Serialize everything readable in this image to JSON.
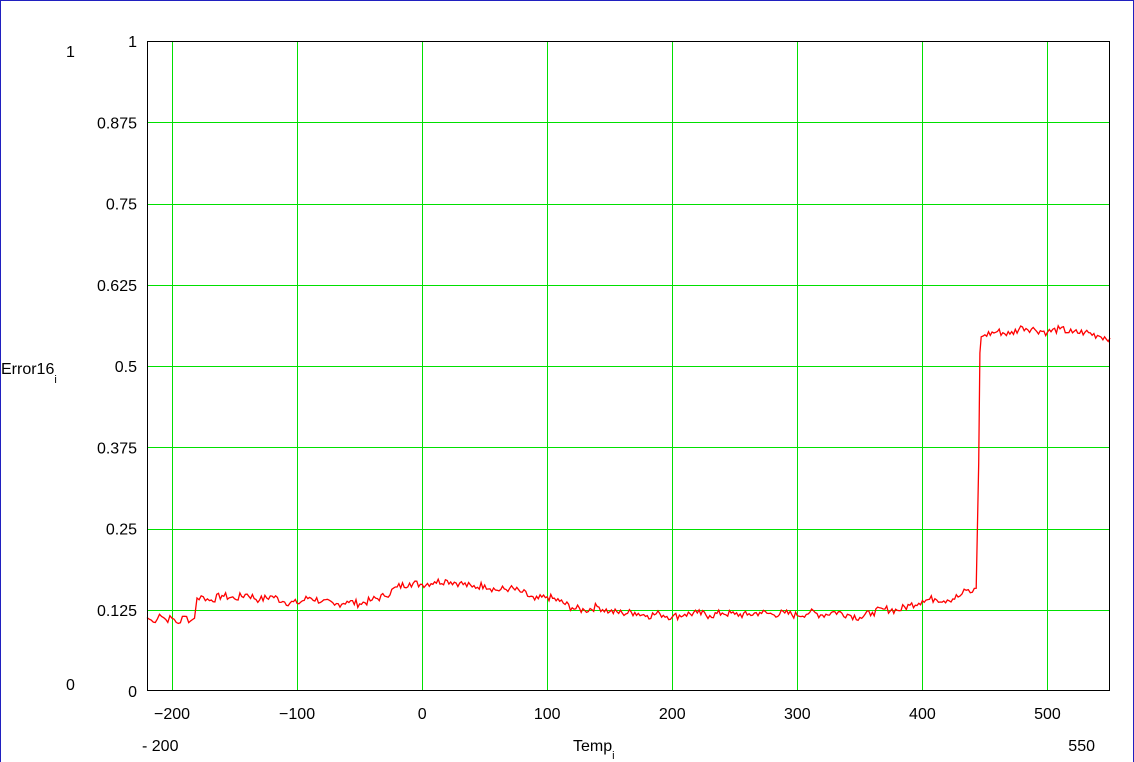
{
  "chart_data": {
    "type": "line",
    "xlabel": "Temp",
    "xlabel_subscript": "i",
    "ylabel": "Error16",
    "ylabel_subscript": "i",
    "xlim": [
      -220,
      550
    ],
    "ylim": [
      0,
      1
    ],
    "x_ticks": [
      -200,
      -100,
      0,
      100,
      200,
      300,
      400,
      500
    ],
    "x_tick_labels": [
      "−200",
      "−100",
      "0",
      "100",
      "200",
      "300",
      "400",
      "500"
    ],
    "y_ticks": [
      0,
      0.125,
      0.25,
      0.375,
      0.5,
      0.625,
      0.75,
      0.875,
      1
    ],
    "y_tick_labels": [
      "0",
      "0.125",
      "0.25",
      "0.375",
      "0.5",
      "0.625",
      "0.75",
      "0.875",
      "1"
    ],
    "x_range_labels": {
      "min": "- 200",
      "max": "550"
    },
    "y_range_labels": {
      "min": "0",
      "max": "1"
    },
    "grid": true,
    "colors": {
      "grid": "#00e000",
      "line": "#ff0000",
      "frame": "#2020c0"
    },
    "series": [
      {
        "x": [
          -220,
          -215,
          -210,
          -205,
          -200,
          -195,
          -190,
          -185,
          -182,
          -180,
          -175,
          -170,
          -160,
          -150,
          -140,
          -130,
          -120,
          -110,
          -100,
          -90,
          -80,
          -70,
          -60,
          -50,
          -40,
          -30,
          -20,
          -10,
          0,
          10,
          20,
          30,
          40,
          50,
          60,
          70,
          80,
          90,
          100,
          110,
          120,
          130,
          140,
          150,
          160,
          170,
          180,
          190,
          200,
          210,
          220,
          230,
          240,
          250,
          260,
          270,
          280,
          290,
          300,
          310,
          320,
          330,
          340,
          350,
          360,
          370,
          380,
          390,
          400,
          410,
          420,
          430,
          435,
          440,
          443,
          444,
          445,
          446,
          447,
          450,
          460,
          470,
          480,
          490,
          500,
          510,
          520,
          530,
          540,
          550
        ],
        "y": [
          0.113,
          0.106,
          0.118,
          0.11,
          0.112,
          0.104,
          0.115,
          0.108,
          0.112,
          0.143,
          0.145,
          0.139,
          0.147,
          0.142,
          0.149,
          0.14,
          0.146,
          0.137,
          0.135,
          0.144,
          0.138,
          0.132,
          0.138,
          0.134,
          0.14,
          0.146,
          0.16,
          0.166,
          0.164,
          0.168,
          0.17,
          0.166,
          0.16,
          0.163,
          0.155,
          0.158,
          0.152,
          0.14,
          0.145,
          0.138,
          0.128,
          0.124,
          0.13,
          0.122,
          0.12,
          0.121,
          0.116,
          0.119,
          0.114,
          0.118,
          0.12,
          0.116,
          0.12,
          0.118,
          0.117,
          0.121,
          0.118,
          0.12,
          0.116,
          0.121,
          0.117,
          0.122,
          0.118,
          0.113,
          0.121,
          0.126,
          0.124,
          0.132,
          0.139,
          0.142,
          0.14,
          0.146,
          0.155,
          0.152,
          0.158,
          0.25,
          0.35,
          0.52,
          0.545,
          0.548,
          0.553,
          0.549,
          0.56,
          0.556,
          0.552,
          0.557,
          0.551,
          0.552,
          0.547,
          0.543
        ]
      }
    ]
  }
}
